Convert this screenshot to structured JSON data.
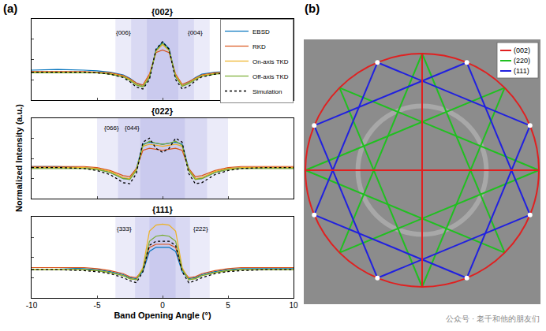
{
  "chart_data": [
    {
      "type": "line",
      "title": "{002}",
      "xlim": [
        -10,
        10
      ],
      "xticks": [
        -10,
        -5,
        0,
        5,
        10
      ],
      "ylim": [
        0,
        1.2
      ],
      "yticks": [
        0.3,
        0.6,
        0.9
      ],
      "tick_labels": false,
      "legend": "upper right",
      "x": [
        -10,
        -8,
        -6,
        -5,
        -4,
        -3,
        -2.5,
        -2,
        -1.5,
        -1,
        -0.5,
        0,
        0.5,
        1,
        1.5,
        2,
        2.5,
        3,
        4,
        5,
        6,
        8,
        10
      ],
      "bands": [
        [
          -3.6,
          3.6
        ],
        [
          -2.4,
          2.4
        ],
        [
          -1.2,
          1.2
        ]
      ],
      "band_labels": [
        {
          "text": "{006}",
          "x": -3.0,
          "y": 1.0
        },
        {
          "text": "{004}",
          "x": 2.5,
          "y": 1.0
        }
      ],
      "series": [
        {
          "name": "EBSD",
          "color": "#0072BD",
          "line_style": "solid",
          "values": [
            0.44,
            0.45,
            0.44,
            0.43,
            0.41,
            0.37,
            0.32,
            0.25,
            0.2,
            0.33,
            0.74,
            0.86,
            0.76,
            0.34,
            0.21,
            0.26,
            0.33,
            0.38,
            0.41,
            0.42,
            0.42,
            0.41,
            0.41
          ]
        },
        {
          "name": "RKD",
          "color": "#D95319",
          "line_style": "solid",
          "values": [
            0.42,
            0.42,
            0.42,
            0.41,
            0.4,
            0.36,
            0.31,
            0.25,
            0.22,
            0.38,
            0.7,
            0.74,
            0.7,
            0.38,
            0.23,
            0.27,
            0.32,
            0.37,
            0.4,
            0.41,
            0.41,
            0.42,
            0.42
          ]
        },
        {
          "name": "On-axis TKD",
          "color": "#EDB120",
          "line_style": "solid",
          "values": [
            0.41,
            0.41,
            0.4,
            0.4,
            0.39,
            0.35,
            0.3,
            0.23,
            0.2,
            0.35,
            0.72,
            0.82,
            0.73,
            0.36,
            0.21,
            0.25,
            0.31,
            0.36,
            0.39,
            0.4,
            0.4,
            0.4,
            0.4
          ]
        },
        {
          "name": "Off-axis TKD",
          "color": "#77AC30",
          "line_style": "solid",
          "values": [
            0.4,
            0.4,
            0.4,
            0.4,
            0.38,
            0.34,
            0.29,
            0.22,
            0.19,
            0.33,
            0.73,
            0.84,
            0.74,
            0.34,
            0.2,
            0.24,
            0.3,
            0.35,
            0.38,
            0.4,
            0.4,
            0.4,
            0.4
          ]
        },
        {
          "name": "Simulation",
          "color": "#000000",
          "line_style": "dotted",
          "values": [
            0.41,
            0.41,
            0.41,
            0.4,
            0.38,
            0.33,
            0.27,
            0.19,
            0.16,
            0.3,
            0.75,
            0.86,
            0.75,
            0.3,
            0.16,
            0.2,
            0.28,
            0.34,
            0.38,
            0.4,
            0.41,
            0.41,
            0.41
          ]
        }
      ]
    },
    {
      "type": "line",
      "title": "{022}",
      "xlim": [
        -10,
        10
      ],
      "xticks": [
        -10,
        -5,
        0,
        5,
        10
      ],
      "ylim": [
        0.1,
        0.9
      ],
      "yticks": [
        0.3,
        0.5,
        0.7
      ],
      "tick_labels": false,
      "x": [
        -10,
        -8,
        -6,
        -5,
        -4,
        -3,
        -2.5,
        -2,
        -1.5,
        -1,
        -0.5,
        0,
        0.5,
        1,
        1.5,
        2,
        2.5,
        3,
        4,
        5,
        6,
        8,
        10
      ],
      "bands": [
        [
          -5,
          5
        ],
        [
          -3.4,
          3.4
        ],
        [
          -1.7,
          1.7
        ]
      ],
      "band_labels": [
        {
          "text": "{066}",
          "x": -3.9,
          "y": 0.8
        },
        {
          "text": "{044}",
          "x": -2.3,
          "y": 0.8
        }
      ],
      "series": [
        {
          "name": "EBSD",
          "color": "#0072BD",
          "line_style": "solid",
          "values": [
            0.42,
            0.42,
            0.41,
            0.4,
            0.36,
            0.3,
            0.3,
            0.4,
            0.64,
            0.66,
            0.65,
            0.64,
            0.65,
            0.66,
            0.64,
            0.4,
            0.3,
            0.3,
            0.36,
            0.4,
            0.41,
            0.41,
            0.41
          ]
        },
        {
          "name": "RKD",
          "color": "#D95319",
          "line_style": "solid",
          "values": [
            0.42,
            0.42,
            0.42,
            0.41,
            0.38,
            0.33,
            0.32,
            0.4,
            0.58,
            0.6,
            0.59,
            0.58,
            0.59,
            0.6,
            0.58,
            0.4,
            0.32,
            0.33,
            0.38,
            0.41,
            0.42,
            0.42,
            0.42
          ]
        },
        {
          "name": "On-axis TKD",
          "color": "#EDB120",
          "line_style": "solid",
          "values": [
            0.41,
            0.41,
            0.41,
            0.4,
            0.37,
            0.31,
            0.3,
            0.39,
            0.62,
            0.64,
            0.63,
            0.62,
            0.63,
            0.64,
            0.62,
            0.39,
            0.3,
            0.31,
            0.37,
            0.4,
            0.41,
            0.41,
            0.41
          ]
        },
        {
          "name": "Off-axis TKD",
          "color": "#77AC30",
          "line_style": "solid",
          "values": [
            0.4,
            0.4,
            0.4,
            0.39,
            0.36,
            0.3,
            0.29,
            0.38,
            0.63,
            0.67,
            0.65,
            0.64,
            0.65,
            0.67,
            0.63,
            0.38,
            0.29,
            0.3,
            0.36,
            0.39,
            0.4,
            0.4,
            0.4
          ]
        },
        {
          "name": "Simulation",
          "color": "#000000",
          "line_style": "dotted",
          "values": [
            0.41,
            0.41,
            0.4,
            0.38,
            0.34,
            0.26,
            0.25,
            0.35,
            0.66,
            0.7,
            0.6,
            0.56,
            0.6,
            0.7,
            0.66,
            0.35,
            0.25,
            0.26,
            0.34,
            0.38,
            0.4,
            0.41,
            0.41
          ]
        }
      ]
    },
    {
      "type": "line",
      "title": "{111}",
      "xlabel": "Band Opening Angle (°)",
      "xlim": [
        -10,
        10
      ],
      "xticks": [
        -10,
        -5,
        0,
        5,
        10
      ],
      "ylim": [
        0.1,
        0.9
      ],
      "yticks": [
        0.3,
        0.5,
        0.7
      ],
      "tick_labels": "x",
      "x": [
        -10,
        -8,
        -6,
        -5,
        -4,
        -3,
        -2.5,
        -2,
        -1.5,
        -1,
        -0.5,
        0,
        0.5,
        1,
        1.5,
        2,
        2.5,
        3,
        4,
        5,
        6,
        8,
        10
      ],
      "bands": [
        [
          -3.6,
          3.6
        ],
        [
          -2.1,
          2.1
        ],
        [
          -1,
          1
        ]
      ],
      "band_labels": [
        {
          "text": "{333}",
          "x": -2.9,
          "y": 0.78
        },
        {
          "text": "{222}",
          "x": 2.9,
          "y": 0.78
        }
      ],
      "series": [
        {
          "name": "EBSD",
          "color": "#0072BD",
          "line_style": "solid",
          "values": [
            0.4,
            0.4,
            0.39,
            0.38,
            0.36,
            0.33,
            0.3,
            0.29,
            0.36,
            0.56,
            0.6,
            0.6,
            0.6,
            0.56,
            0.36,
            0.29,
            0.3,
            0.33,
            0.36,
            0.38,
            0.39,
            0.39,
            0.39
          ]
        },
        {
          "name": "RKD",
          "color": "#D95319",
          "line_style": "solid",
          "values": [
            0.4,
            0.4,
            0.4,
            0.39,
            0.37,
            0.34,
            0.31,
            0.3,
            0.38,
            0.6,
            0.63,
            0.63,
            0.63,
            0.6,
            0.38,
            0.3,
            0.31,
            0.34,
            0.37,
            0.39,
            0.4,
            0.4,
            0.4
          ]
        },
        {
          "name": "On-axis TKD",
          "color": "#EDB120",
          "line_style": "solid",
          "values": [
            0.38,
            0.38,
            0.38,
            0.37,
            0.35,
            0.32,
            0.29,
            0.28,
            0.4,
            0.76,
            0.82,
            0.83,
            0.82,
            0.76,
            0.4,
            0.28,
            0.29,
            0.32,
            0.35,
            0.37,
            0.38,
            0.38,
            0.38
          ]
        },
        {
          "name": "Off-axis TKD",
          "color": "#77AC30",
          "line_style": "solid",
          "values": [
            0.38,
            0.38,
            0.38,
            0.37,
            0.35,
            0.32,
            0.29,
            0.28,
            0.38,
            0.66,
            0.71,
            0.72,
            0.71,
            0.66,
            0.38,
            0.28,
            0.29,
            0.32,
            0.35,
            0.37,
            0.38,
            0.38,
            0.38
          ]
        },
        {
          "name": "Simulation",
          "color": "#000000",
          "line_style": "dotted",
          "values": [
            0.38,
            0.38,
            0.37,
            0.36,
            0.34,
            0.3,
            0.27,
            0.25,
            0.36,
            0.62,
            0.66,
            0.66,
            0.66,
            0.62,
            0.36,
            0.25,
            0.27,
            0.3,
            0.34,
            0.36,
            0.37,
            0.38,
            0.38
          ]
        }
      ]
    }
  ],
  "figure": {
    "letters": [
      "(a)",
      "(b)"
    ],
    "y_label": "Normalized Intensity (a.u.)"
  },
  "diagram": {
    "legend_entries": [
      {
        "label": "(002)",
        "color": "#e02020"
      },
      {
        "label": "(220)",
        "color": "#20c020"
      },
      {
        "label": "(111)",
        "color": "#2020e0"
      }
    ]
  },
  "watermark": "公众号 · 老千和他的朋友们"
}
